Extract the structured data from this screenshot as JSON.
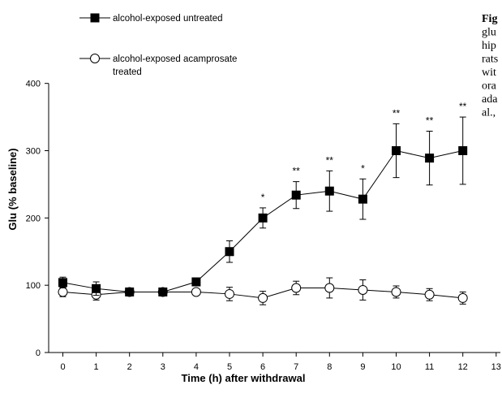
{
  "chart_data": {
    "type": "line",
    "title": "",
    "xlabel": "Time (h) after withdrawal",
    "ylabel": "Glu (% baseline)",
    "xlim": [
      -0.4,
      13
    ],
    "ylim": [
      0,
      400
    ],
    "x_ticks": [
      0,
      1,
      2,
      3,
      4,
      5,
      6,
      7,
      8,
      9,
      10,
      11,
      12,
      13
    ],
    "y_ticks": [
      0,
      100,
      200,
      300,
      400
    ],
    "grid": false,
    "legend_position": "top-left",
    "series": [
      {
        "name": "alcohol-exposed untreated",
        "marker": "filled-square",
        "color": "#000000",
        "x": [
          0,
          1,
          2,
          3,
          4,
          5,
          6,
          7,
          8,
          9,
          10,
          11,
          12
        ],
        "y": [
          104,
          95,
          90,
          90,
          105,
          150,
          200,
          234,
          240,
          228,
          300,
          289,
          300
        ],
        "error": [
          8,
          10,
          4,
          4,
          4,
          16,
          15,
          20,
          30,
          30,
          40,
          40,
          50
        ],
        "significance": [
          "",
          "",
          "",
          "",
          "",
          "",
          "*",
          "**",
          "**",
          "*",
          "**",
          "**",
          "**"
        ]
      },
      {
        "name": "alcohol-exposed acamprosate treated",
        "legend_lines": [
          "alcohol-exposed acamprosate",
          "treated"
        ],
        "marker": "open-circle",
        "color": "#000000",
        "x": [
          0,
          1,
          2,
          3,
          4,
          5,
          6,
          7,
          8,
          9,
          10,
          11,
          12
        ],
        "y": [
          90,
          86,
          90,
          90,
          90,
          87,
          81,
          96,
          96,
          93,
          90,
          86,
          81
        ],
        "error": [
          7,
          8,
          3,
          3,
          3,
          10,
          10,
          10,
          15,
          15,
          9,
          9,
          9
        ]
      }
    ]
  },
  "caption": {
    "lines": [
      "Fig",
      "glu",
      "hip",
      "rats",
      "wit",
      "ora",
      "ada",
      "al.,"
    ],
    "bold_lines": [
      0
    ]
  }
}
